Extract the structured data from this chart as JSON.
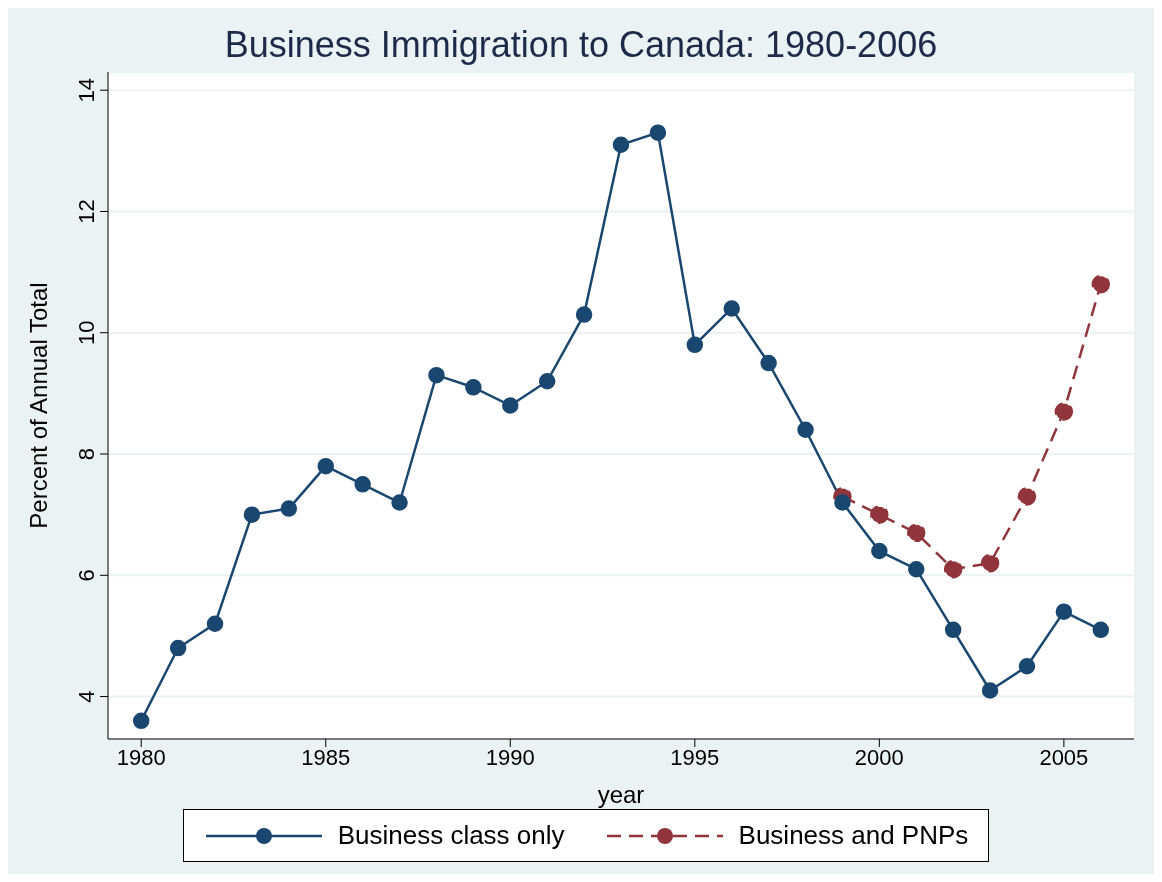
{
  "chart_data": {
    "type": "line",
    "title": "Business Immigration to Canada: 1980-2006",
    "xlabel": "year",
    "ylabel": "Percent of Annual Total",
    "xlim": [
      1979.1,
      2006.9
    ],
    "xticks": [
      1980,
      1985,
      1990,
      1995,
      2000,
      2005
    ],
    "ylim": [
      3.3,
      14.3
    ],
    "yticks": [
      4,
      6,
      8,
      10,
      12,
      14
    ],
    "grid": "y",
    "legend": "bottom",
    "marker": "circle",
    "series": [
      {
        "name": "Business class only",
        "color": "#1a476f",
        "line_style": "solid",
        "x": [
          1980,
          1981,
          1982,
          1983,
          1984,
          1985,
          1986,
          1987,
          1988,
          1989,
          1990,
          1991,
          1992,
          1993,
          1994,
          1995,
          1996,
          1997,
          1998,
          1999,
          2000,
          2001,
          2002,
          2003,
          2004,
          2005,
          2006
        ],
        "values": [
          3.6,
          4.8,
          5.2,
          7.0,
          7.1,
          7.8,
          7.5,
          7.2,
          9.3,
          9.1,
          8.8,
          9.2,
          10.3,
          13.1,
          13.3,
          9.8,
          10.4,
          9.5,
          8.4,
          7.2,
          6.4,
          6.1,
          5.1,
          4.1,
          4.5,
          5.4,
          5.1
        ]
      },
      {
        "name": "Business and PNPs",
        "color": "#90353b",
        "line_style": "dashed",
        "x": [
          1999,
          2000,
          2001,
          2002,
          2003,
          2004,
          2005,
          2006
        ],
        "values": [
          7.3,
          7.0,
          6.7,
          6.1,
          6.2,
          7.3,
          8.7,
          10.8
        ]
      }
    ]
  }
}
